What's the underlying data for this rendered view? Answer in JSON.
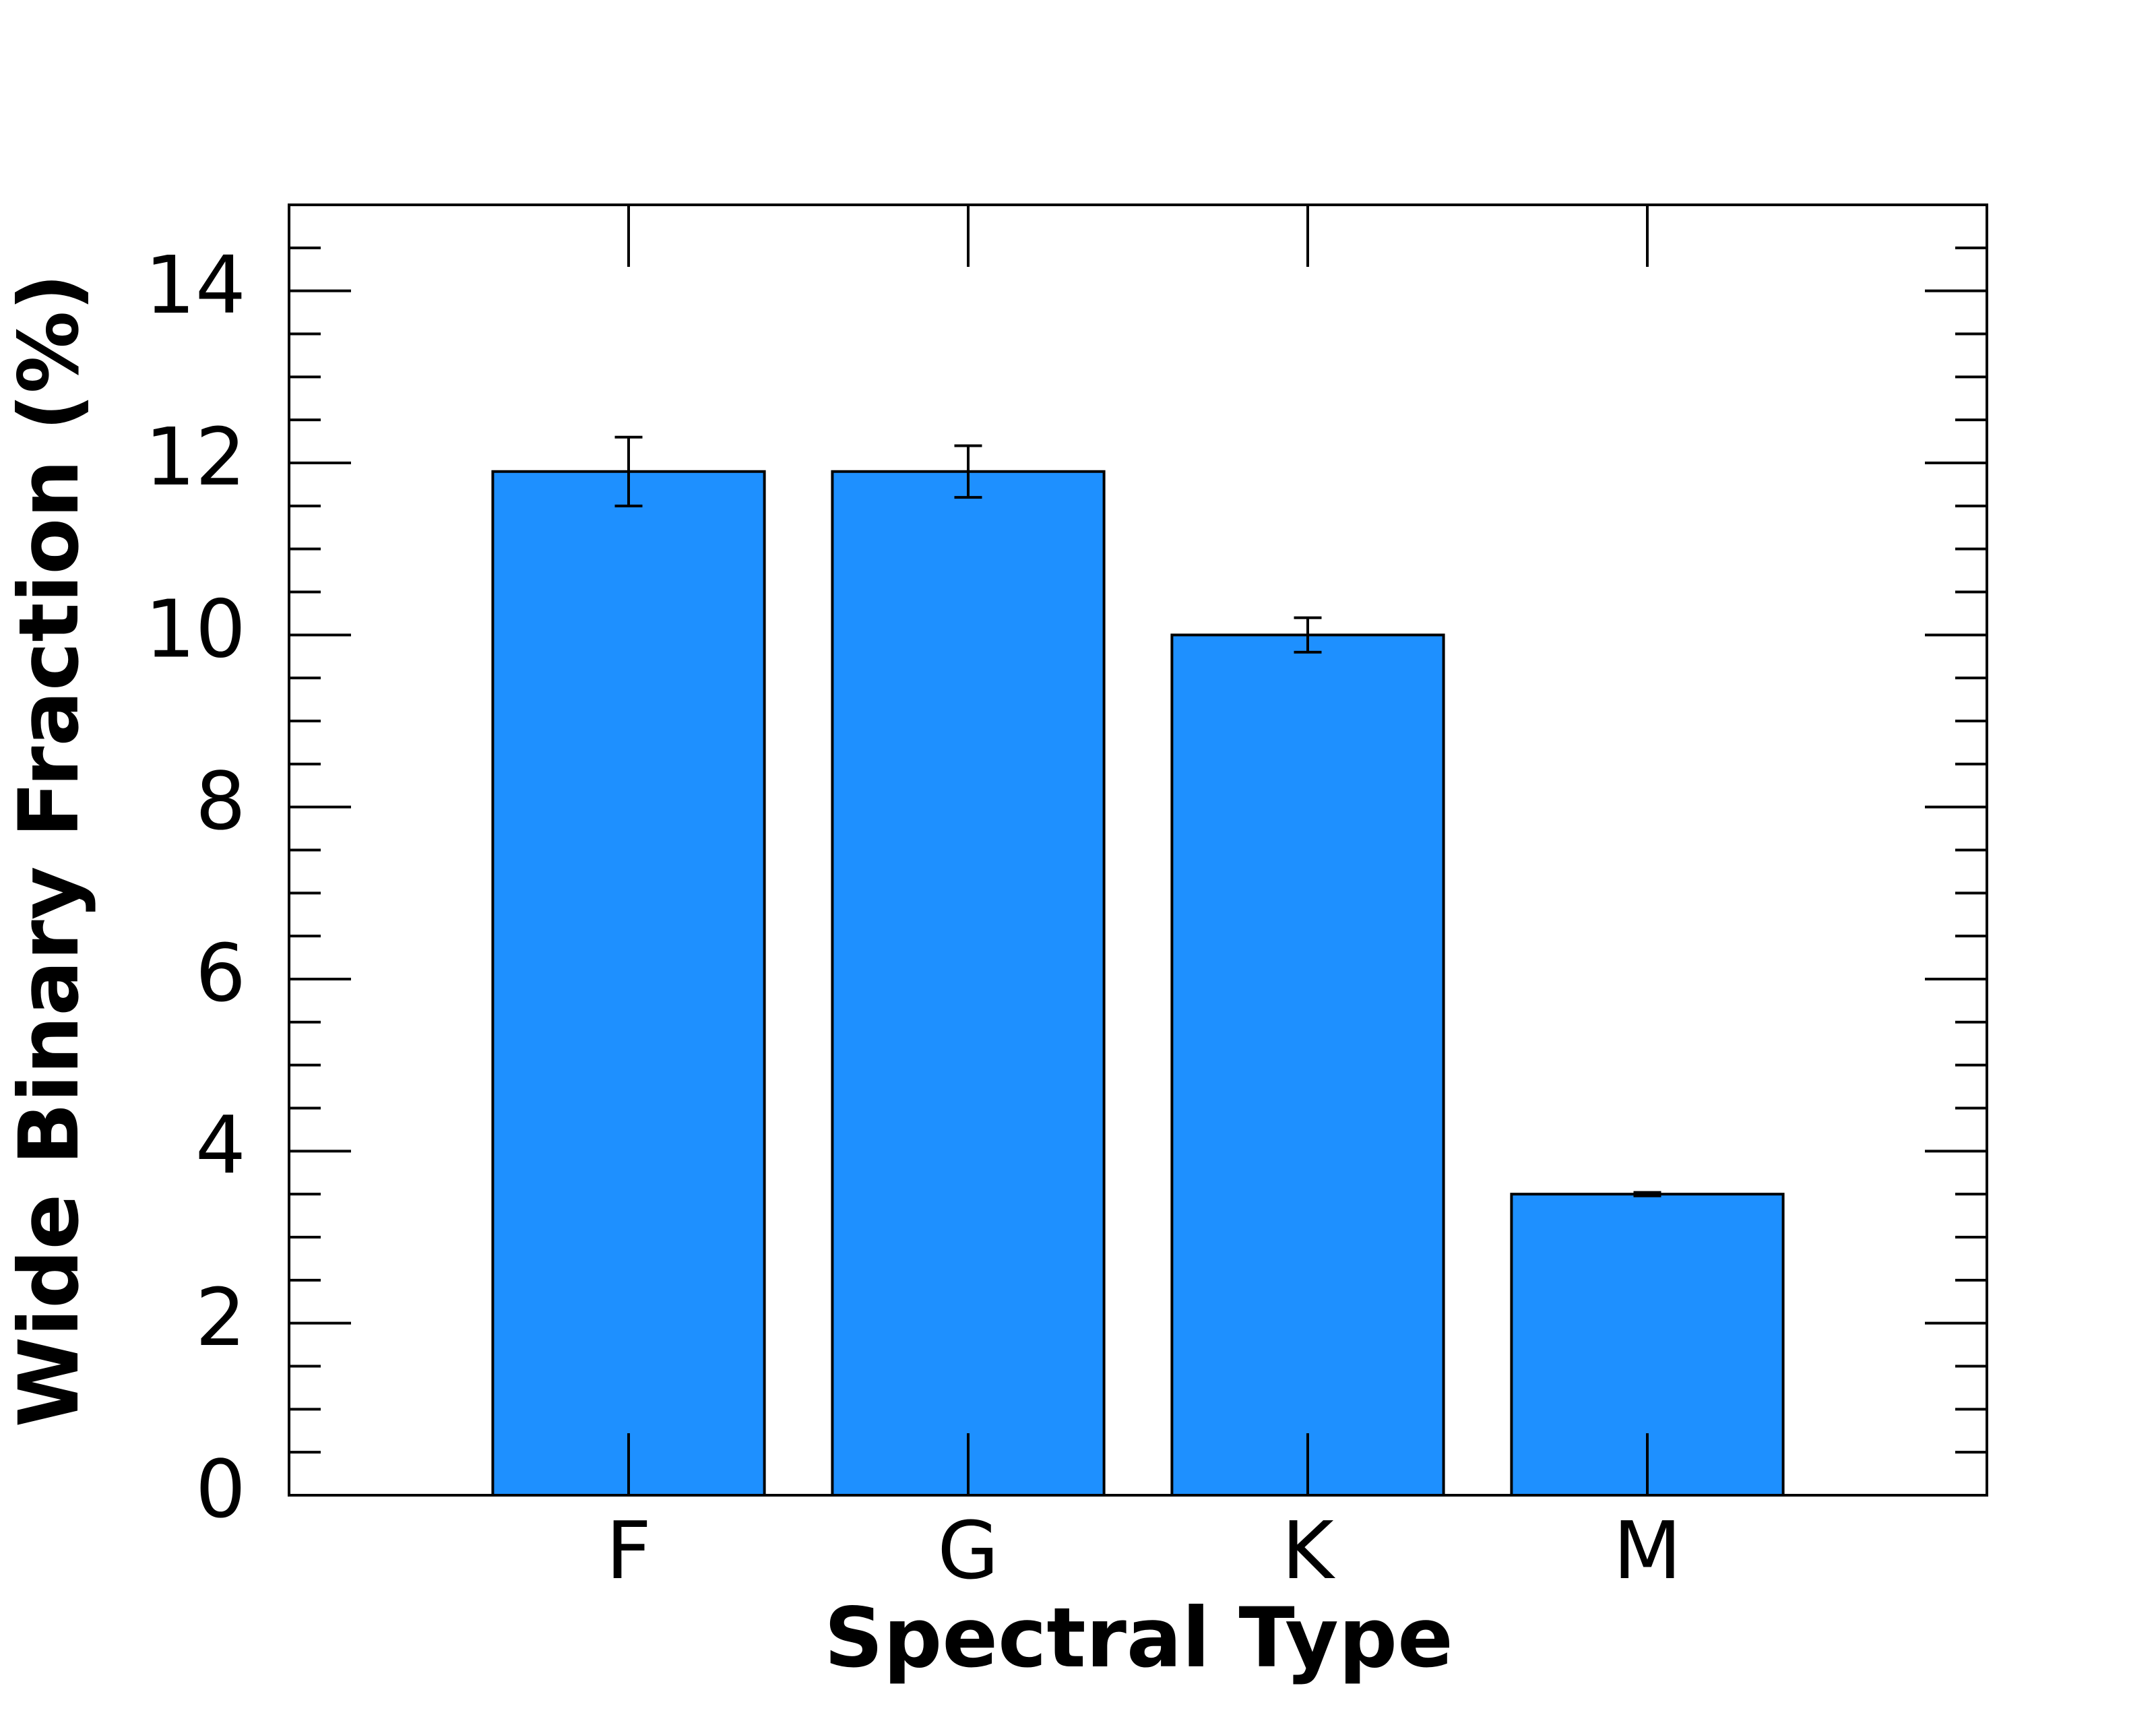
{
  "chart_data": {
    "type": "bar",
    "xlabel": "Spectral Type",
    "ylabel": "Wide Binary Fraction (%)",
    "categories": [
      "F",
      "G",
      "K",
      "M"
    ],
    "values": [
      11.9,
      11.9,
      10.0,
      3.5
    ],
    "errors": [
      0.4,
      0.3,
      0.2,
      0.02
    ],
    "color": "#1e90ff",
    "ylim": [
      0,
      15
    ],
    "yticks": [
      0,
      2,
      4,
      6,
      8,
      10,
      12,
      14
    ],
    "yminorticks": [
      0.5,
      1,
      1.5,
      2.5,
      3,
      3.5,
      4.5,
      5,
      5.5,
      6.5,
      7,
      7.5,
      8.5,
      9,
      9.5,
      10.5,
      11,
      11.5,
      12.5,
      13,
      13.5,
      14.5
    ]
  }
}
